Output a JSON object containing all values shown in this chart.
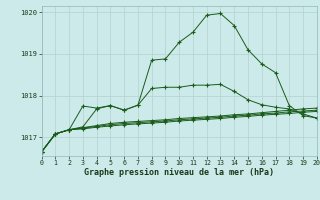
{
  "xlabel": "Graphe pression niveau de la mer (hPa)",
  "xlim": [
    0,
    20
  ],
  "ylim": [
    1016.55,
    1020.15
  ],
  "yticks": [
    1017,
    1018,
    1019,
    1020
  ],
  "xticks": [
    0,
    1,
    2,
    3,
    4,
    5,
    6,
    7,
    8,
    9,
    10,
    11,
    12,
    13,
    14,
    15,
    16,
    17,
    18,
    19,
    20
  ],
  "bg_color": "#cdeaea",
  "grid_color": "#b8d4d4",
  "line_color": "#1a5c1a",
  "series": {
    "main_peak": [
      1016.65,
      1017.08,
      1017.18,
      1017.25,
      1017.68,
      1017.76,
      1017.65,
      1017.77,
      1018.85,
      1018.88,
      1019.28,
      1019.52,
      1019.93,
      1019.97,
      1019.68,
      1019.1,
      1018.76,
      1018.55,
      1017.76,
      1017.52,
      1017.46
    ],
    "wavy": [
      1016.65,
      1017.08,
      1017.18,
      1017.75,
      1017.7,
      1017.76,
      1017.65,
      1017.77,
      1018.17,
      1018.2,
      1018.2,
      1018.25,
      1018.25,
      1018.27,
      1018.1,
      1017.9,
      1017.78,
      1017.72,
      1017.68,
      1017.56,
      1017.46
    ],
    "flat1": [
      1016.65,
      1017.08,
      1017.18,
      1017.23,
      1017.28,
      1017.33,
      1017.36,
      1017.38,
      1017.4,
      1017.42,
      1017.45,
      1017.47,
      1017.49,
      1017.51,
      1017.54,
      1017.56,
      1017.59,
      1017.62,
      1017.65,
      1017.68,
      1017.7
    ],
    "flat2": [
      1016.65,
      1017.08,
      1017.18,
      1017.22,
      1017.26,
      1017.3,
      1017.33,
      1017.35,
      1017.37,
      1017.39,
      1017.42,
      1017.44,
      1017.46,
      1017.48,
      1017.51,
      1017.53,
      1017.56,
      1017.58,
      1017.61,
      1017.63,
      1017.65
    ],
    "flat3": [
      1016.65,
      1017.08,
      1017.18,
      1017.2,
      1017.24,
      1017.27,
      1017.3,
      1017.32,
      1017.34,
      1017.36,
      1017.39,
      1017.41,
      1017.43,
      1017.45,
      1017.48,
      1017.5,
      1017.53,
      1017.55,
      1017.57,
      1017.6,
      1017.62
    ]
  }
}
